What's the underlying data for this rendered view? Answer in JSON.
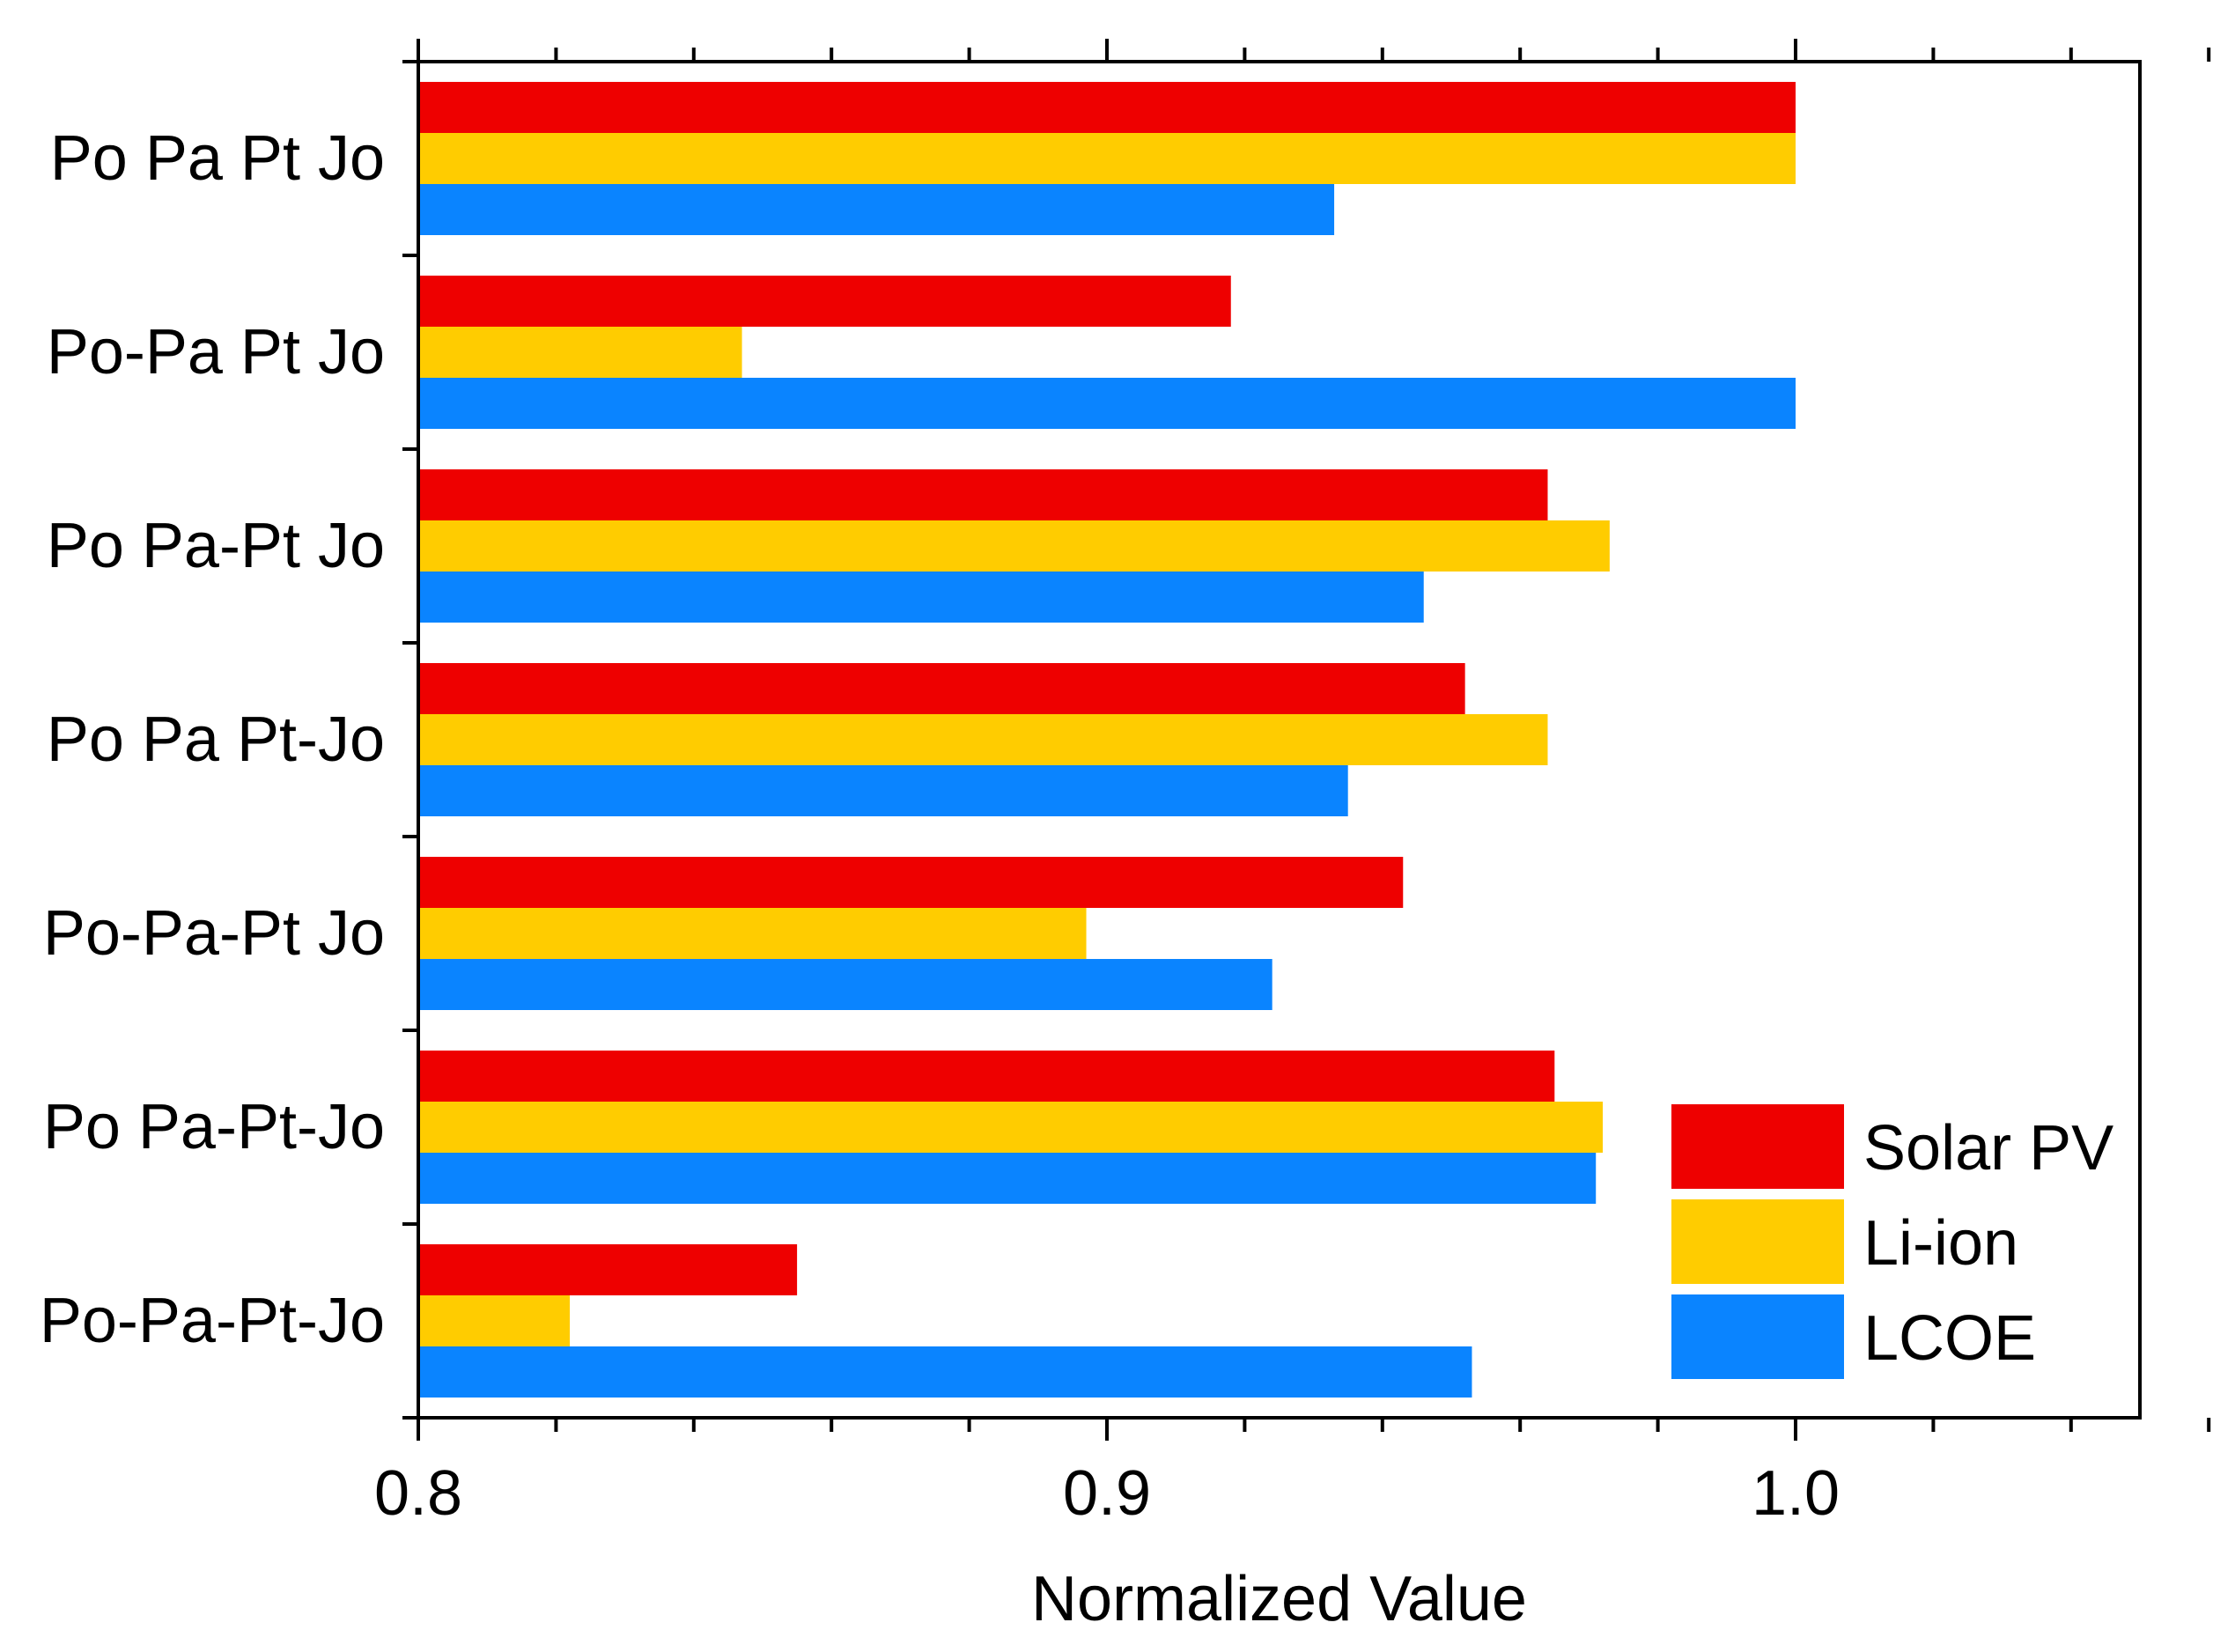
{
  "chart_data": {
    "type": "bar",
    "orientation": "horizontal",
    "categories": [
      "Po Pa Pt Jo",
      "Po-Pa Pt Jo",
      "Po Pa-Pt Jo",
      "Po Pa Pt-Jo",
      "Po-Pa-Pt Jo",
      "Po Pa-Pt-Jo",
      "Po-Pa-Pt-Jo"
    ],
    "series": [
      {
        "name": "Solar PV",
        "color": "#ee0000",
        "values": [
          1.0,
          0.918,
          0.964,
          0.952,
          0.943,
          0.965,
          0.855
        ]
      },
      {
        "name": "Li-ion",
        "color": "#ffcc00",
        "values": [
          1.0,
          0.847,
          0.973,
          0.964,
          0.897,
          0.972,
          0.822
        ]
      },
      {
        "name": "LCOE",
        "color": "#0a84ff",
        "values": [
          0.933,
          1.0,
          0.946,
          0.935,
          0.924,
          0.971,
          0.953
        ]
      }
    ],
    "xlabel": "Normalized Value",
    "ylabel": "",
    "title": "",
    "xlim": [
      0.8,
      1.05
    ],
    "xticks": [
      {
        "value": 0.8,
        "label": "0.8"
      },
      {
        "value": 0.9,
        "label": "0.9"
      },
      {
        "value": 1.0,
        "label": "1.0"
      }
    ],
    "minor_tick_step": 0.02,
    "grid": false,
    "legend_position": "bottom-right"
  }
}
